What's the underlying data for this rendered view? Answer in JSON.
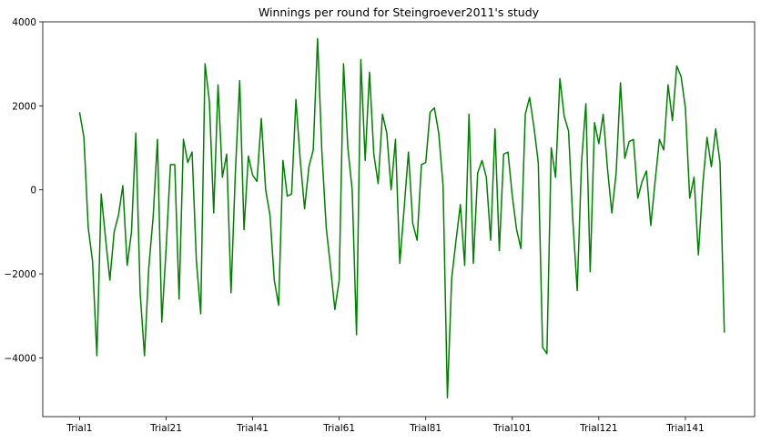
{
  "chart_data": {
    "type": "line",
    "title": "Winnings per round for Steingroever2011's study",
    "xlabel": "",
    "ylabel": "",
    "ylim": [
      -5400,
      4000
    ],
    "xlim": [
      -8.5,
      156
    ],
    "grid": false,
    "line_color": "#008000",
    "x_tick_positions": [
      0,
      20,
      40,
      60,
      80,
      100,
      120,
      140
    ],
    "x_tick_labels": [
      "Trial1",
      "Trial21",
      "Trial41",
      "Trial61",
      "Trial81",
      "Trial101",
      "Trial121",
      "Trial141"
    ],
    "y_ticks": [
      -4000,
      -2000,
      0,
      2000,
      4000
    ],
    "y_tick_labels": [
      "−4000",
      "−2000",
      "0",
      "2000",
      "4000"
    ],
    "x": [
      0,
      1,
      2,
      3,
      4,
      5,
      6,
      7,
      8,
      9,
      10,
      11,
      12,
      13,
      14,
      15,
      16,
      17,
      18,
      19,
      20,
      21,
      22,
      23,
      24,
      25,
      26,
      27,
      28,
      29,
      30,
      31,
      32,
      33,
      34,
      35,
      36,
      37,
      38,
      39,
      40,
      41,
      42,
      43,
      44,
      45,
      46,
      47,
      48,
      49,
      50,
      51,
      52,
      53,
      54,
      55,
      56,
      57,
      58,
      59,
      60,
      61,
      62,
      63,
      64,
      65,
      66,
      67,
      68,
      69,
      70,
      71,
      72,
      73,
      74,
      75,
      76,
      77,
      78,
      79,
      80,
      81,
      82,
      83,
      84,
      85,
      86,
      87,
      88,
      89,
      90,
      91,
      92,
      93,
      94,
      95,
      96,
      97,
      98,
      99,
      100,
      101,
      102,
      103,
      104,
      105,
      106,
      107,
      108,
      109,
      110,
      111,
      112,
      113,
      114,
      115,
      116,
      117,
      118,
      119,
      120,
      121,
      122,
      123,
      124,
      125,
      126,
      127,
      128,
      129,
      130,
      131,
      132,
      133,
      134,
      135,
      136,
      137,
      138,
      139,
      140,
      141,
      142,
      143,
      144,
      145,
      146,
      147,
      148,
      149
    ],
    "series": [
      {
        "values": [
          1850,
          1250,
          -900,
          -1700,
          -3950,
          -100,
          -1150,
          -2150,
          -1000,
          -600,
          100,
          -1800,
          -1000,
          1350,
          -2450,
          -3950,
          -1850,
          -650,
          1200,
          -3150,
          -1400,
          600,
          600,
          -2600,
          1200,
          650,
          900,
          -1700,
          -2950,
          3000,
          2100,
          -550,
          2500,
          300,
          850,
          -2450,
          400,
          2600,
          -950,
          800,
          350,
          200,
          1700,
          0,
          -600,
          -2150,
          -2750,
          700,
          -150,
          -100,
          2150,
          700,
          -450,
          550,
          950,
          3600,
          900,
          -900,
          -1850,
          -2850,
          -2150,
          3000,
          1000,
          0,
          -3450,
          3100,
          700,
          2800,
          850,
          150,
          1800,
          1350,
          0,
          1200,
          -1750,
          -450,
          900,
          -800,
          -1200,
          600,
          650,
          1850,
          1950,
          1350,
          100,
          -4950,
          -2100,
          -1200,
          -350,
          -1800,
          1800,
          -1750,
          400,
          700,
          300,
          -1200,
          1450,
          -1450,
          850,
          900,
          -150,
          -950,
          -1400,
          1800,
          2200,
          1500,
          650,
          -3750,
          -3900,
          1000,
          300,
          2650,
          1750,
          1400,
          -750,
          -2400,
          650,
          2050,
          -1950,
          1600,
          1100,
          1800,
          500,
          -550,
          400,
          2550,
          750,
          1150,
          1200,
          -200,
          200,
          450,
          -850,
          200,
          1200,
          950,
          2500,
          1650,
          2950,
          2700,
          1950,
          -200,
          300,
          -1550,
          100,
          1250,
          550,
          1450,
          650,
          -3400
        ]
      }
    ]
  }
}
